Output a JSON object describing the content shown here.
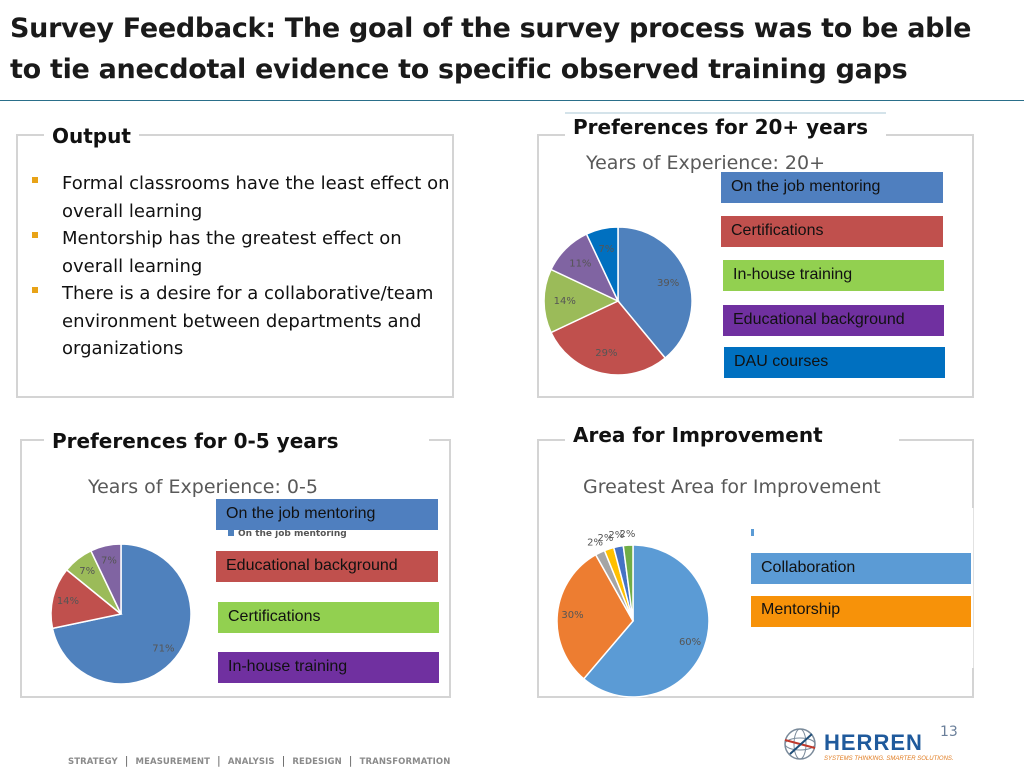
{
  "slide": {
    "title": "Survey Feedback: The goal of the survey process was to be able to tie anecdotal evidence to specific observed training gaps",
    "page_number": "13"
  },
  "output": {
    "title": "Output",
    "bullets": [
      "Formal classrooms have the least effect on overall learning",
      "Mentorship has the greatest effect on overall learning",
      "There is a desire for a collaborative/team environment between departments and organizations"
    ]
  },
  "pref20": {
    "panel_title": "Preferences for 20+ years",
    "legend": [
      "On the job mentoring",
      "Certifications",
      "In-house training",
      "Educational background",
      "DAU courses"
    ]
  },
  "pref05": {
    "panel_title": "Preferences for 0-5 years",
    "tiny_legend": "On the job mentoring",
    "legend": [
      "On the job mentoring",
      "Educational background",
      "Certifications",
      "In-house training"
    ]
  },
  "improve": {
    "panel_title": "Area for Improvement",
    "legend": [
      "Collaboration",
      "Mentorship"
    ]
  },
  "colors": {
    "blue": "#4f81bd",
    "red": "#c0504d",
    "green": "#9bbb59",
    "purple": "#8064a2",
    "cyan": "#0070c0",
    "light_blue": "#5b9bd5",
    "orange": "#ed7d31",
    "gray": "#a5a5a5",
    "gold": "#ffc000",
    "dark_blue": "#4472c4",
    "dark_green": "#70ad47",
    "box_blue": "#4f7fbf",
    "box_red": "#c0504d",
    "box_green": "#92d050",
    "box_purple": "#7030a0",
    "box_cyan": "#0070c0",
    "box_lightblue": "#5b9bd5",
    "box_orange": "#f79209"
  },
  "footer": {
    "items": [
      "STRATEGY",
      "MEASUREMENT",
      "ANALYSIS",
      "REDESIGN",
      "TRANSFORMATION"
    ],
    "logo_name": "HERREN",
    "logo_tagline": "SYSTEMS THINKING. SMARTER SOLUTIONS."
  },
  "chart_data": [
    {
      "type": "pie",
      "title": "Years of Experience: 20+",
      "labels": [
        "",
        "",
        "",
        "",
        ""
      ],
      "values": [
        39,
        29,
        14,
        11,
        7
      ],
      "value_labels": [
        "39%",
        "29%",
        "14%",
        "11%",
        "7%"
      ],
      "colors": [
        "#4f81bd",
        "#c0504d",
        "#9bbb59",
        "#8064a2",
        "#0070c0"
      ]
    },
    {
      "type": "pie",
      "title": "Years of Experience: 0-5",
      "labels": [
        "",
        "",
        "",
        ""
      ],
      "values": [
        71,
        14,
        7,
        7
      ],
      "value_labels": [
        "71%",
        "14%",
        "7%",
        "7%"
      ],
      "colors": [
        "#4f81bd",
        "#c0504d",
        "#9bbb59",
        "#8064a2"
      ]
    },
    {
      "type": "pie",
      "title": "Greatest Area for Improvement",
      "labels": [
        "",
        "",
        "",
        "",
        "",
        ""
      ],
      "values": [
        60,
        30,
        2,
        2,
        2,
        2
      ],
      "value_labels": [
        "60%",
        "30%",
        "2%",
        "2%",
        "2%",
        "2%"
      ],
      "colors": [
        "#5b9bd5",
        "#ed7d31",
        "#a5a5a5",
        "#ffc000",
        "#4472c4",
        "#70ad47"
      ]
    }
  ]
}
